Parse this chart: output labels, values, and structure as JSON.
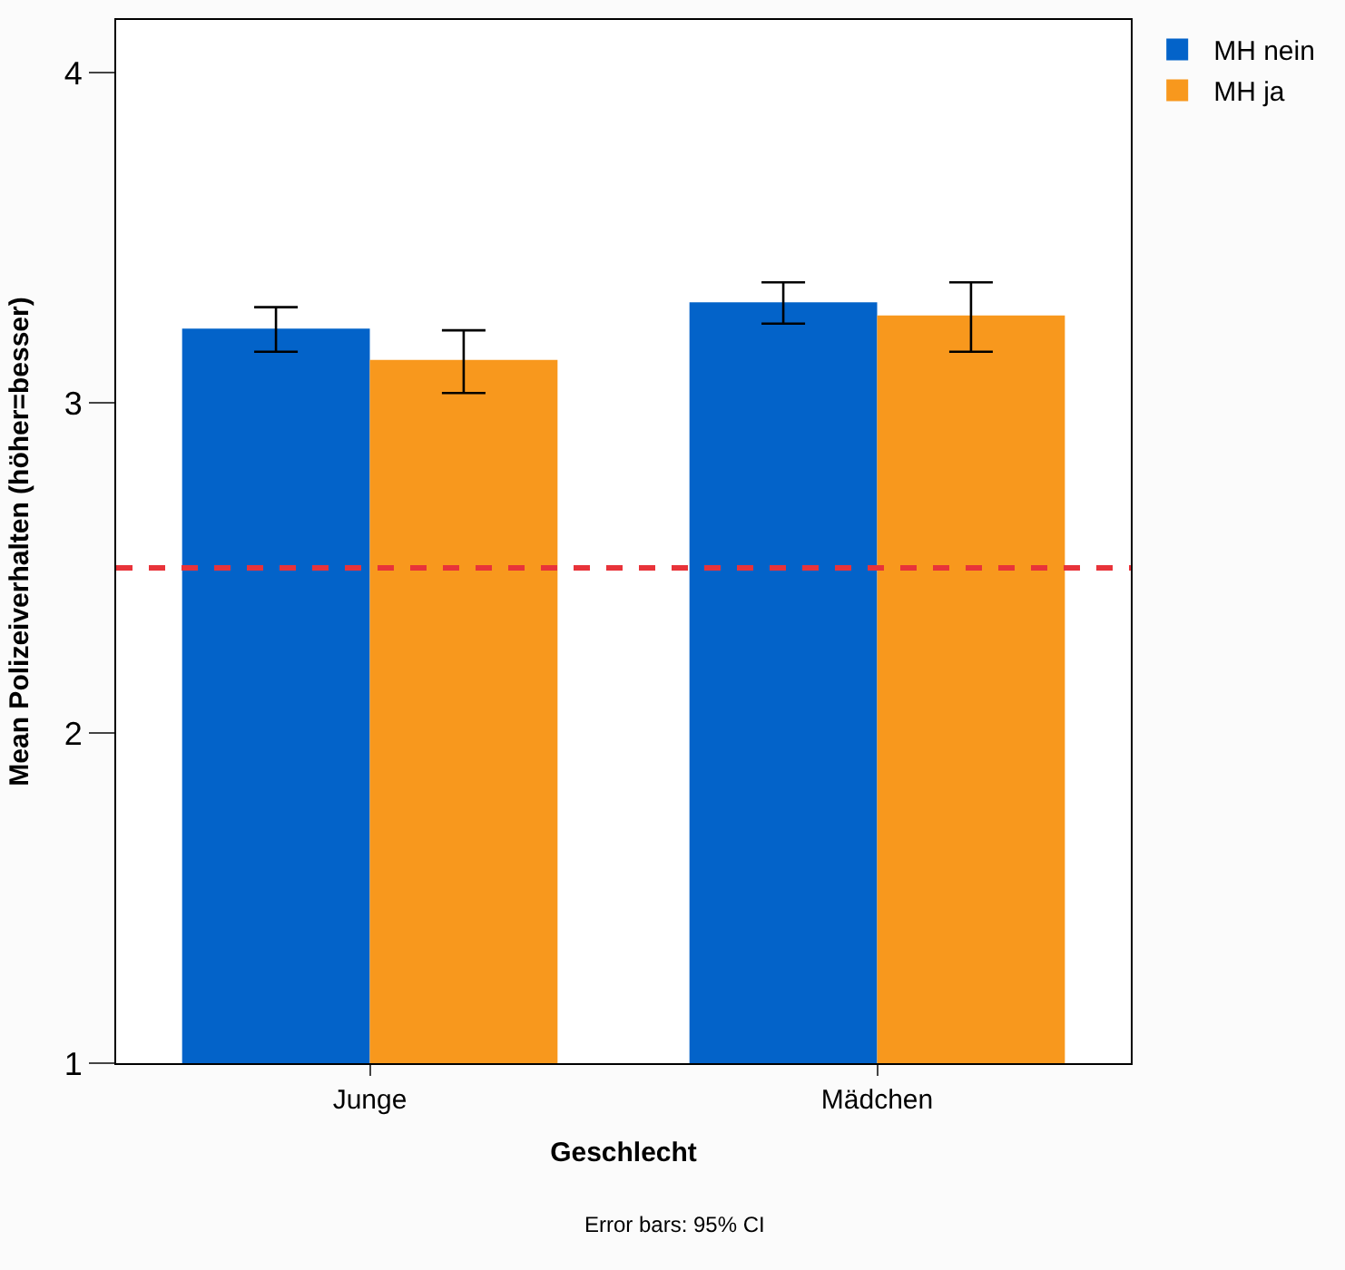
{
  "chart_data": {
    "type": "bar",
    "xlabel": "Geschlecht",
    "ylabel": "Mean Polizeiverhalten (höher=besser)",
    "categories": [
      "Junge",
      "Mädchen"
    ],
    "series": [
      {
        "name": "MH nein",
        "color": "#0363c9",
        "values": [
          3.225,
          3.305
        ],
        "errors": [
          [
            3.155,
            3.29
          ],
          [
            3.24,
            3.365
          ]
        ]
      },
      {
        "name": "MH ja",
        "color": "#f8981d",
        "values": [
          3.13,
          3.265
        ],
        "errors": [
          [
            3.03,
            3.22
          ],
          [
            3.155,
            3.365
          ]
        ]
      }
    ],
    "ylim": [
      1,
      4.16
    ],
    "yticks": [
      1,
      2,
      3,
      4
    ],
    "legend": "top right",
    "ref_lines": [
      {
        "axis": "y",
        "value": 2.5,
        "color": "#e8333a",
        "line_style": "dashed"
      }
    ],
    "annotations": [
      "Error bars: 95% CI"
    ]
  }
}
